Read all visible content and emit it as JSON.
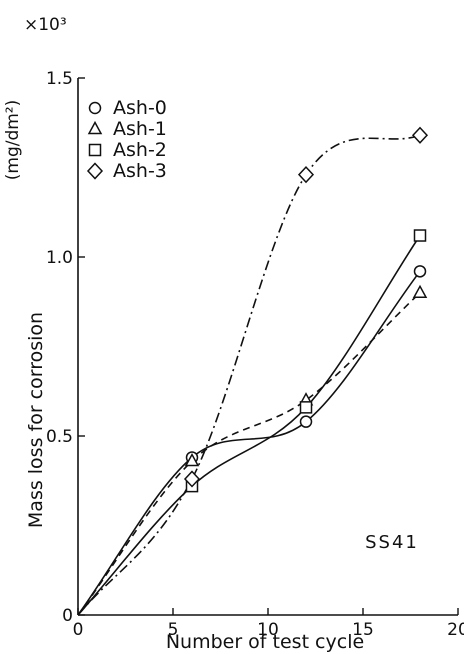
{
  "chart_data": {
    "type": "line",
    "title": "",
    "xlabel": "Number of test cycle",
    "ylabel": "Mass loss for corrosion",
    "yunit": "(mg/dm²)",
    "yscale_label": "×10³",
    "xlim": [
      0,
      20
    ],
    "ylim": [
      0,
      1.5
    ],
    "xticks": [
      "0",
      "5",
      "10",
      "15",
      "20"
    ],
    "yticks": [
      "0",
      "0.5",
      "1.0",
      "1.5"
    ],
    "grid": false,
    "legend_position": "top-left",
    "annotation": "SS41",
    "series": [
      {
        "name": "Ash-0",
        "marker": "circle",
        "line_style": "solid",
        "x": [
          0,
          6,
          12,
          18
        ],
        "y": [
          0,
          0.44,
          0.54,
          0.96
        ]
      },
      {
        "name": "Ash-1",
        "marker": "triangle",
        "line_style": "dashed",
        "x": [
          0,
          6,
          12,
          18
        ],
        "y": [
          0,
          0.43,
          0.6,
          0.9
        ]
      },
      {
        "name": "Ash-2",
        "marker": "square",
        "line_style": "solid",
        "x": [
          0,
          6,
          12,
          18
        ],
        "y": [
          0,
          0.36,
          0.58,
          1.06
        ]
      },
      {
        "name": "Ash-3",
        "marker": "diamond",
        "line_style": "dashdot",
        "x": [
          0,
          6,
          12,
          18
        ],
        "y": [
          0,
          0.38,
          1.23,
          1.34
        ]
      }
    ]
  }
}
